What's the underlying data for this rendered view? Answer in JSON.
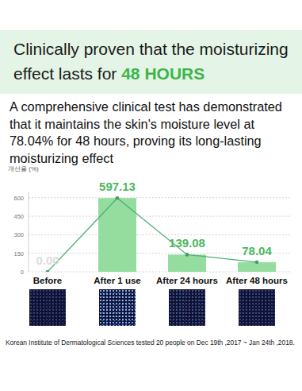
{
  "header": {
    "title": "Clinically proven that the moisturizing effect lasts for",
    "title_highlight": "48 HOURS",
    "subtitle": "A comprehensive clinical test has demonstrated that it maintains the skin's moisture level at 78.04% for 48 hours, proving its long-lasting moisturizing effect"
  },
  "chart_data": {
    "type": "bar",
    "y_label": "개선율 (%)",
    "categories": [
      "Before",
      "After 1 use",
      "After 24 hours",
      "After 48 hours"
    ],
    "values": [
      0,
      597.13,
      139.08,
      78.04
    ],
    "value_labels": [
      "0.00",
      "597.13",
      "139.08",
      "78.04"
    ],
    "color": "#95dc9f",
    "ylim": [
      0,
      650
    ],
    "yticks": [
      0,
      150,
      300,
      450,
      600
    ],
    "grid": true,
    "data_labels": true
  },
  "footer": {
    "source": "Korean Institute of Dermatological Sciences tested 20 people on Dec 19th ,2017 ~ Jan 24th ,2018."
  }
}
